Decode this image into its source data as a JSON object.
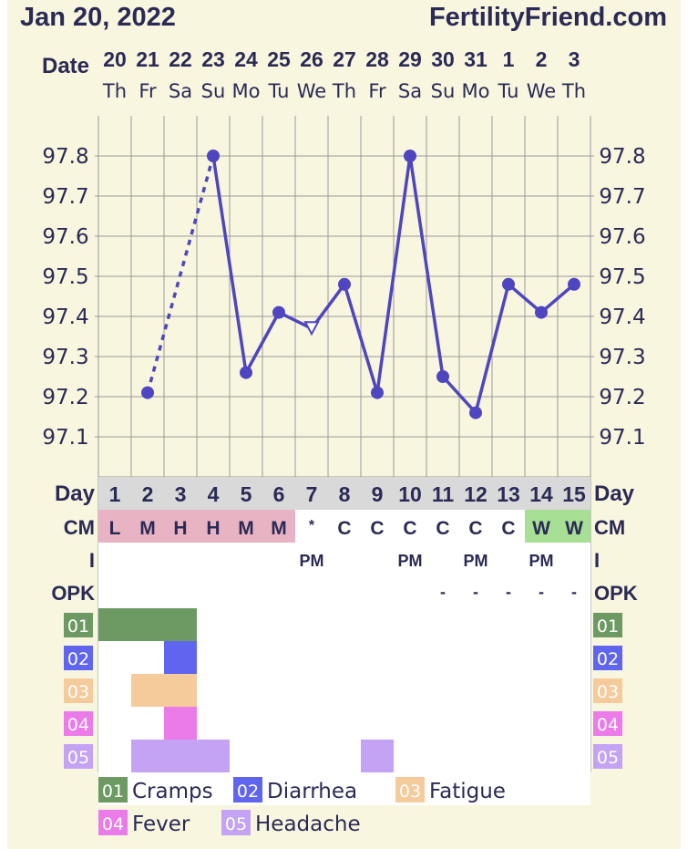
{
  "header": {
    "date_title": "Jan 20, 2022",
    "site": "FertilityFriend.com"
  },
  "row_labels": {
    "date": "Date",
    "day": "Day",
    "cm": "CM",
    "i": "I",
    "opk": "OPK"
  },
  "columns": {
    "dates": [
      "20",
      "21",
      "22",
      "23",
      "24",
      "25",
      "26",
      "27",
      "28",
      "29",
      "30",
      "31",
      "1",
      "2",
      "3"
    ],
    "weekdays": [
      "Th",
      "Fr",
      "Sa",
      "Su",
      "Mo",
      "Tu",
      "We",
      "Th",
      "Fr",
      "Sa",
      "Su",
      "Mo",
      "Tu",
      "We",
      "Th"
    ],
    "cycle_days": [
      "1",
      "2",
      "3",
      "4",
      "5",
      "6",
      "7",
      "8",
      "9",
      "10",
      "11",
      "12",
      "13",
      "14",
      "15"
    ]
  },
  "chart_data": {
    "type": "line",
    "series": [
      {
        "values": [
          null,
          97.21,
          null,
          97.8,
          97.26,
          97.41,
          97.37,
          97.48,
          97.21,
          97.8,
          97.25,
          97.16,
          97.48,
          97.41,
          97.48
        ],
        "open_markers": [
          7
        ]
      }
    ],
    "dashed_segment_days": [
      2,
      4
    ],
    "yticks": [
      "97.1",
      "97.2",
      "97.3",
      "97.4",
      "97.5",
      "97.6",
      "97.7",
      "97.8"
    ],
    "ylim": [
      97.0,
      97.9
    ],
    "grid": true
  },
  "cm_row": {
    "values": [
      "L",
      "M",
      "H",
      "H",
      "M",
      "M",
      "*",
      "C",
      "C",
      "C",
      "C",
      "C",
      "C",
      "W",
      "W"
    ],
    "colors": {
      "L": "#e8b4c4",
      "M": "#e8b4c4",
      "H": "#e8b4c4",
      "W": "#a7df94",
      "C": "#ffffff",
      "*": "#ffffff"
    }
  },
  "i_row": {
    "values": [
      "",
      "",
      "",
      "",
      "",
      "",
      "PM",
      "",
      "",
      "PM",
      "",
      "PM",
      "",
      "PM",
      ""
    ]
  },
  "opk_row": {
    "values": [
      "",
      "",
      "",
      "",
      "",
      "",
      "",
      "",
      "",
      "",
      "-",
      "-",
      "-",
      "-",
      "-"
    ]
  },
  "symptoms": {
    "rows": [
      {
        "code": "01",
        "color": "#6d9a63",
        "days": [
          1,
          2,
          3
        ]
      },
      {
        "code": "02",
        "color": "#6065f0",
        "days": [
          3
        ]
      },
      {
        "code": "03",
        "color": "#f5cb9c",
        "days": [
          2,
          3
        ]
      },
      {
        "code": "04",
        "color": "#ea7be8",
        "days": [
          3
        ]
      },
      {
        "code": "05",
        "color": "#c4a3f5",
        "days": [
          2,
          3,
          4,
          9
        ]
      }
    ]
  },
  "legend": [
    {
      "code": "01",
      "label": "Cramps",
      "color": "#6d9a63"
    },
    {
      "code": "02",
      "label": "Diarrhea",
      "color": "#6065f0"
    },
    {
      "code": "03",
      "label": "Fatigue",
      "color": "#f5cb9c"
    },
    {
      "code": "04",
      "label": "Fever",
      "color": "#ea7be8"
    },
    {
      "code": "05",
      "label": "Headache",
      "color": "#c4a3f5"
    }
  ],
  "colors": {
    "line": "#4e46c0",
    "grid": "#999999",
    "day_row_bg": "#d9d9d9",
    "background": "#f8f6df"
  }
}
